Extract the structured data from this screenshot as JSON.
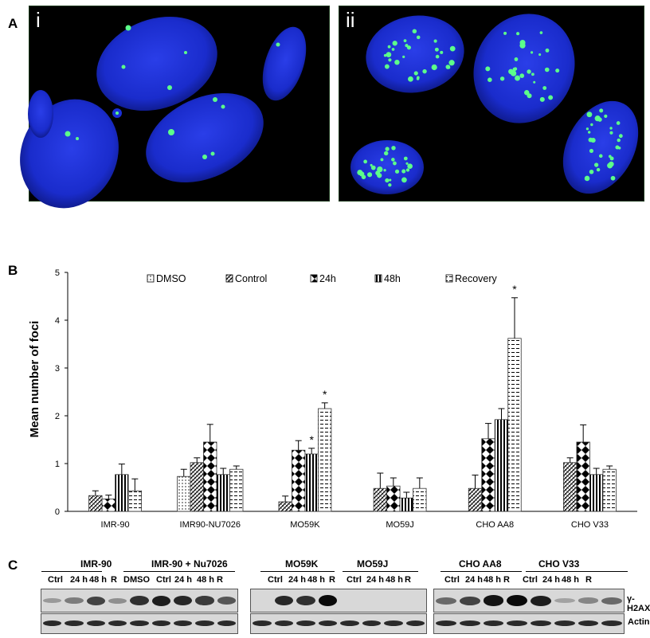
{
  "panels": {
    "a": {
      "letter": "A",
      "images": [
        {
          "label": "i"
        },
        {
          "label": "ii"
        }
      ]
    },
    "b": {
      "letter": "B"
    },
    "c": {
      "letter": "C"
    }
  },
  "colors": {
    "DMSO": "#ffffff",
    "Control": "#ffffff",
    "24h": "#ffffff",
    "48h": "#ffffff",
    "Recovery": "#ffffff",
    "nucleus": "#1a2fd6",
    "foci": "#5cff8a"
  },
  "chart_data": {
    "type": "bar",
    "title": "",
    "xlabel": "",
    "ylabel": "Mean number of foci",
    "ylim": [
      0,
      5
    ],
    "yticks": [
      "0",
      "1",
      "2",
      "3",
      "4",
      "5"
    ],
    "categories": [
      "IMR-90",
      "IMR90-NU7026",
      "MO59K",
      "MO59J",
      "CHO AA8",
      "CHO V33"
    ],
    "legend_position": "top",
    "series": [
      {
        "name": "DMSO",
        "pattern": "dots",
        "values": [
          null,
          0.73,
          null,
          null,
          null,
          null
        ],
        "errors": [
          null,
          0.15,
          null,
          null,
          null,
          null
        ]
      },
      {
        "name": "Control",
        "pattern": "diag",
        "values": [
          0.33,
          1.02,
          0.2,
          0.48,
          0.48,
          1.02
        ],
        "errors": [
          0.1,
          0.1,
          0.12,
          0.32,
          0.28,
          0.1
        ]
      },
      {
        "name": "24h",
        "pattern": "checker",
        "values": [
          0.26,
          1.45,
          1.28,
          0.53,
          1.52,
          1.45
        ],
        "errors": [
          0.08,
          0.37,
          0.2,
          0.17,
          0.32,
          0.36
        ]
      },
      {
        "name": "48h",
        "pattern": "vert",
        "values": [
          0.77,
          0.77,
          1.2,
          0.28,
          1.92,
          0.77
        ],
        "errors": [
          0.22,
          0.13,
          0.12,
          0.12,
          0.23,
          0.13
        ]
      },
      {
        "name": "Recovery",
        "pattern": "horiz",
        "values": [
          0.43,
          0.88,
          2.15,
          0.48,
          3.62,
          0.88
        ],
        "errors": [
          0.25,
          0.07,
          0.12,
          0.22,
          0.85,
          0.07
        ]
      }
    ],
    "annotations": [
      {
        "category": "MO59K",
        "series": "48h",
        "text": "*"
      },
      {
        "category": "MO59K",
        "series": "Recovery",
        "text": "*"
      },
      {
        "category": "CHO AA8",
        "series": "Recovery",
        "text": "*"
      }
    ]
  },
  "blots": {
    "groups": [
      {
        "title": "IMR-90"
      },
      {
        "title": "IMR-90 + Nu7026"
      },
      {
        "title": "MO59K"
      },
      {
        "title": "MO59J"
      },
      {
        "title": "CHO AA8"
      },
      {
        "title": "CHO V33"
      }
    ],
    "lanes_left": [
      "Ctrl",
      "24 h",
      "48 h",
      "R",
      "DMSO",
      "Ctrl",
      "24 h",
      "48 h",
      "R"
    ],
    "lanes_mid": [
      "Ctrl",
      "24 h",
      "48 h",
      "R",
      "Ctrl",
      "24 h",
      "48 h",
      "R"
    ],
    "lanes_right": [
      "Ctrl",
      "24 h",
      "48 h",
      "R",
      "Ctrl",
      "24 h",
      "48 h",
      "R"
    ],
    "row_labels": [
      "γ-H2AX",
      "Actin"
    ],
    "gh2ax_intensity": {
      "left": [
        0.25,
        0.4,
        0.7,
        0.3,
        0.8,
        0.9,
        0.85,
        0.75,
        0.6
      ],
      "mid": [
        0,
        0.85,
        0.8,
        1.0,
        0,
        0,
        0,
        0
      ],
      "right": [
        0.5,
        0.7,
        0.95,
        1.0,
        0.9,
        0.2,
        0.35,
        0.5
      ]
    }
  }
}
